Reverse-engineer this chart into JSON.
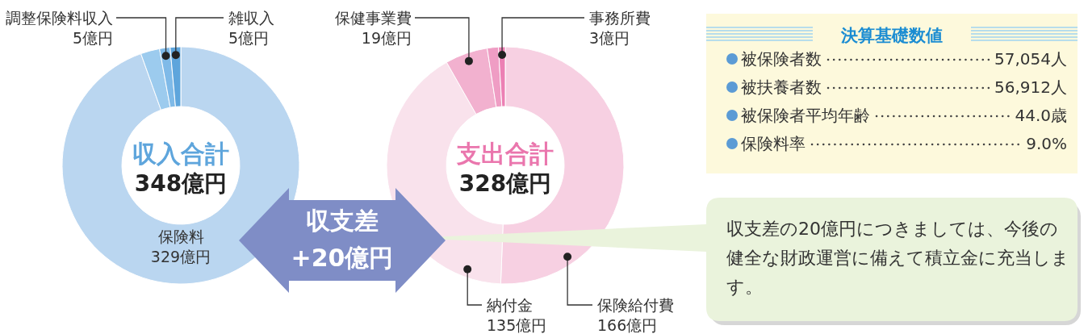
{
  "chart_data": [
    {
      "type": "donut",
      "title": "収入合計",
      "subtitle": "348億円",
      "categories": [
        "保険料",
        null,
        "調整保険料収入",
        "雑収入"
      ],
      "values": [
        329,
        9,
        5,
        5
      ],
      "value_labels": [
        "329億円",
        null,
        "5億円",
        "5億円"
      ],
      "colors": [
        "#bad6f0",
        "#9ccbee",
        "#7fbae8",
        "#5ea5dc"
      ]
    },
    {
      "type": "donut",
      "title": "支出合計",
      "subtitle": "328億円",
      "categories": [
        "保険給付費",
        "納付金",
        "保健事業費",
        null,
        "事務所費"
      ],
      "values": [
        166,
        135,
        19,
        5,
        3
      ],
      "value_labels": [
        "166億円",
        "135億円",
        "19億円",
        null,
        "3億円"
      ],
      "colors": [
        "#f7d0e2",
        "#f9e2ec",
        "#f2b1cf",
        "#ef9dc4",
        "#ec80b4"
      ]
    },
    {
      "type": "other",
      "title": "決算基礎数値",
      "categories": [
        "被保険者数",
        "被扶養者数",
        "被保険者平均年齢",
        "保険料率"
      ],
      "value_labels": [
        "57,054人",
        "56,912人",
        "44.0歳",
        "9.0%"
      ]
    },
    {
      "type": "other",
      "annotations": [
        "収支差",
        "+20億円",
        "収支差の20億円につきましては、今後の健全な財政運営に備えて積立金に充当します。"
      ]
    }
  ]
}
